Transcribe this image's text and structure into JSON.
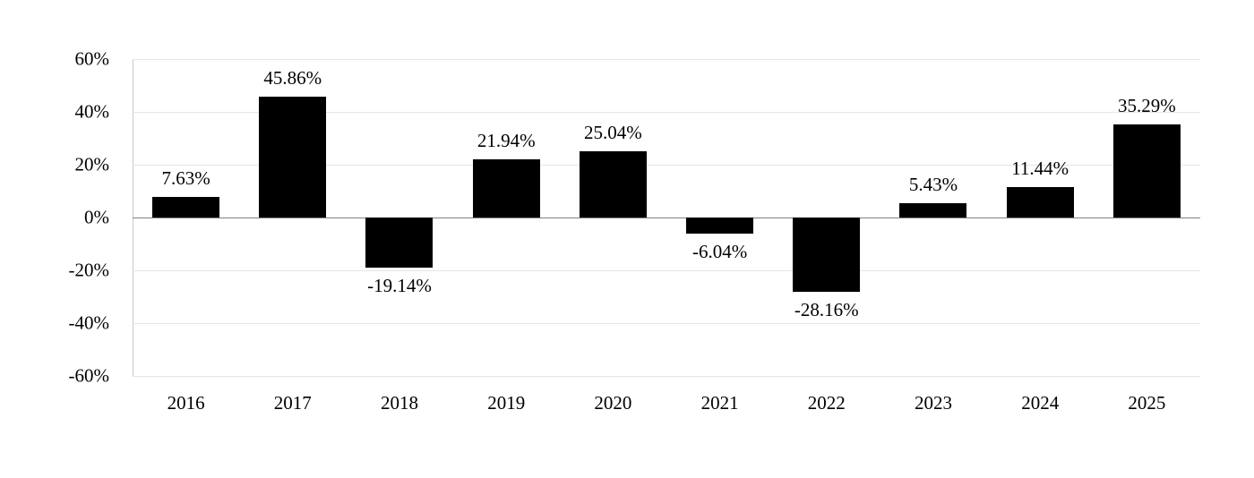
{
  "chart_data": {
    "type": "bar",
    "title": "",
    "categories": [
      "2016",
      "2017",
      "2018",
      "2019",
      "2020",
      "2021",
      "2022",
      "2023",
      "2024",
      "2025"
    ],
    "values": [
      7.63,
      45.86,
      -19.14,
      21.94,
      25.04,
      -6.04,
      -28.16,
      5.43,
      11.44,
      35.29
    ],
    "value_labels": [
      "7.63%",
      "45.86%",
      "-19.14%",
      "21.94%",
      "25.04%",
      "-6.04%",
      "-28.16%",
      "5.43%",
      "11.44%",
      "35.29%"
    ],
    "xlabel": "",
    "ylabel": "",
    "ylim": [
      -60,
      60
    ],
    "yticks": [
      60,
      40,
      20,
      0,
      -20,
      -40,
      -60
    ],
    "ytick_labels": [
      "60%",
      "40%",
      "20%",
      "0%",
      "-20%",
      "-40%",
      "-60%"
    ],
    "grid": true,
    "legend": false,
    "colors": {
      "bar": "#000000",
      "gridline": "#e5e5e5",
      "zero_line": "#808080",
      "axis_line": "#c9c9c9",
      "text": "#000000",
      "background": "#ffffff"
    }
  }
}
